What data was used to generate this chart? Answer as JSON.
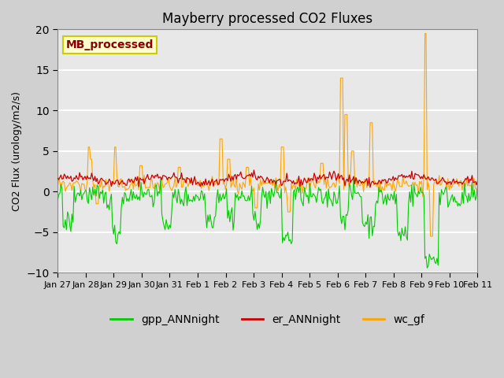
{
  "title": "Mayberry processed CO2 Fluxes",
  "ylabel": "CO2 Flux (urology/m2/s)",
  "ylim": [
    -10,
    20
  ],
  "yticks": [
    -10,
    -5,
    0,
    5,
    10,
    15,
    20
  ],
  "plot_bg_color": "#e8e8e8",
  "grid_color": "white",
  "line_colors": {
    "gpp": "#00cc00",
    "er": "#cc0000",
    "wc": "#ffa500"
  },
  "legend_label": "MB_processed",
  "legend_label_color": "#8b0000",
  "legend_bg": "#ffffcc",
  "legend_edge": "#cccc00",
  "n_points": 384,
  "x_tick_labels": [
    "Jan 27",
    "Jan 28",
    "Jan 29",
    "Jan 30",
    "Jan 31",
    "Feb 1",
    "Feb 2",
    "Feb 3",
    "Feb 4",
    "Feb 5",
    "Feb 6",
    "Feb 7",
    "Feb 8",
    "Feb 9",
    "Feb 10",
    "Feb 11"
  ],
  "bottom_legend": [
    {
      "label": "gpp_ANNnight",
      "color": "#00cc00"
    },
    {
      "label": "er_ANNnight",
      "color": "#cc0000"
    },
    {
      "label": "wc_gf",
      "color": "#ffa500"
    }
  ]
}
